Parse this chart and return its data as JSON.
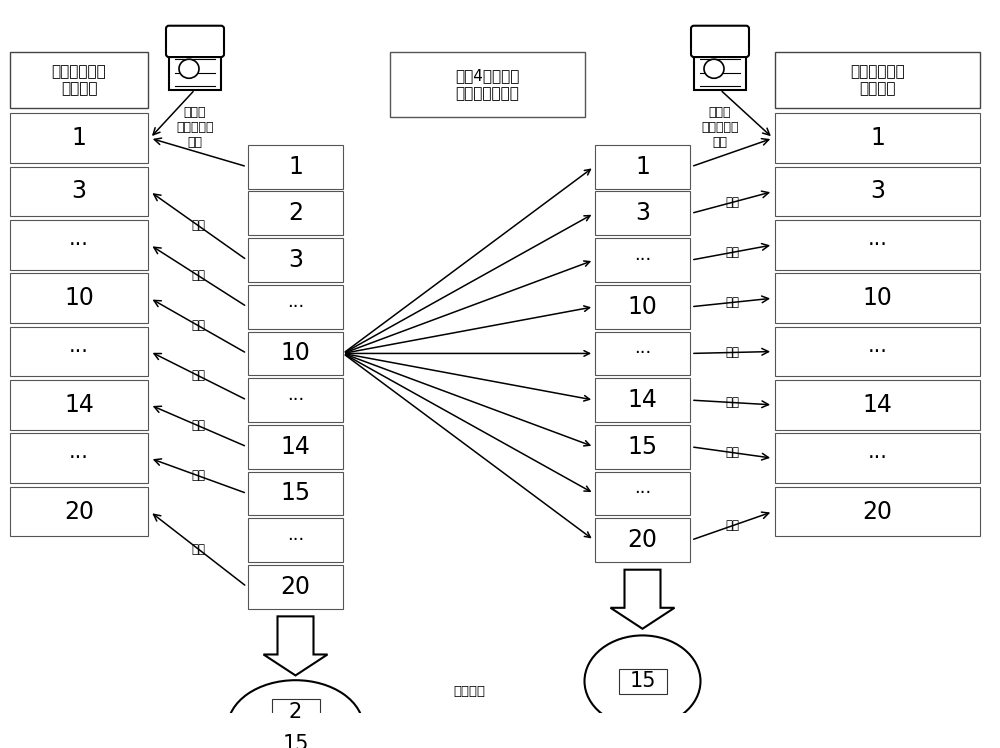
{
  "bg_color": "#ffffff",
  "left_box_title": "生产端无差异\n数据记录",
  "right_box_title": "灾备端无差异\n数据记录",
  "step_label": "步骤4）：排序\n后比较每条记录",
  "left_srv_label": "生产端\n数据库模块\n移除",
  "right_srv_label": "灾备端\n数据库模块\n移除",
  "left_records": [
    "1",
    "3",
    "···",
    "10",
    "···",
    "14",
    "···",
    "20"
  ],
  "left_col_records": [
    "1",
    "2",
    "3",
    "···",
    "10",
    "···",
    "14",
    "15",
    "···",
    "20"
  ],
  "right_col_records": [
    "1",
    "3",
    "···",
    "10",
    "···",
    "14",
    "15",
    "···",
    "20"
  ],
  "right_records": [
    "1",
    "3",
    "···",
    "10",
    "···",
    "14",
    "···",
    "20"
  ],
  "diff_label": "差异记录",
  "left_diff_records": [
    "2",
    "15"
  ],
  "right_diff_record": "15",
  "remove_text": "移除"
}
